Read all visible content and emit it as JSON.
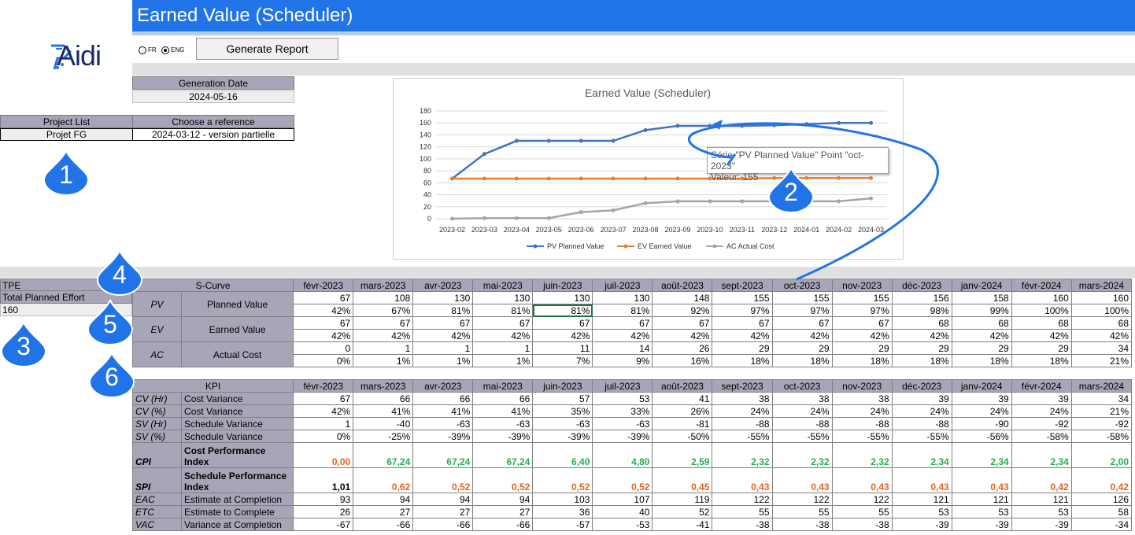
{
  "app": {
    "title": "Earned Value (Scheduler)",
    "logo_text": "Aidi"
  },
  "toolbar": {
    "lang_fr": "FR",
    "lang_eng": "ENG",
    "selected_lang": "ENG",
    "generate_label": "Generate Report"
  },
  "generation": {
    "label": "Generation Date",
    "value": "2024-05-16"
  },
  "project": {
    "list_label": "Project List",
    "list_value": "Projet FG",
    "ref_label": "Choose a reference",
    "ref_value": "2024-03-12 - version partielle"
  },
  "tpe": {
    "label": "TPE",
    "desc": "Total Planned Effort",
    "value": "160"
  },
  "badges": [
    "1",
    "2",
    "3",
    "4",
    "5",
    "6"
  ],
  "tooltip": {
    "line1": "Série \"PV Planned Value\" Point \"oct-2023\"",
    "line2": "Valeur: 155"
  },
  "scurve": {
    "title": "S-Curve",
    "months": [
      "févr-2023",
      "mars-2023",
      "avr-2023",
      "mai-2023",
      "juin-2023",
      "juil-2023",
      "août-2023",
      "sept-2023",
      "oct-2023",
      "nov-2023",
      "déc-2023",
      "janv-2024",
      "févr-2024",
      "mars-2024"
    ],
    "rows": [
      {
        "code": "PV",
        "name": "Planned Value",
        "values": [
          "67",
          "108",
          "130",
          "130",
          "130",
          "130",
          "148",
          "155",
          "155",
          "155",
          "156",
          "158",
          "160",
          "160"
        ],
        "pct": [
          "42%",
          "67%",
          "81%",
          "81%",
          "81%",
          "81%",
          "92%",
          "97%",
          "97%",
          "97%",
          "98%",
          "99%",
          "100%",
          "100%"
        ]
      },
      {
        "code": "EV",
        "name": "Earned Value",
        "values": [
          "67",
          "67",
          "67",
          "67",
          "67",
          "67",
          "67",
          "67",
          "67",
          "67",
          "68",
          "68",
          "68",
          "68"
        ],
        "pct": [
          "42%",
          "42%",
          "42%",
          "42%",
          "42%",
          "42%",
          "42%",
          "42%",
          "42%",
          "42%",
          "42%",
          "42%",
          "42%",
          "42%"
        ]
      },
      {
        "code": "AC",
        "name": "Actual Cost",
        "values": [
          "0",
          "1",
          "1",
          "1",
          "11",
          "14",
          "26",
          "29",
          "29",
          "29",
          "29",
          "29",
          "29",
          "34"
        ],
        "pct": [
          "0%",
          "1%",
          "1%",
          "1%",
          "7%",
          "9%",
          "16%",
          "18%",
          "18%",
          "18%",
          "18%",
          "18%",
          "18%",
          "21%"
        ]
      }
    ]
  },
  "kpi": {
    "title": "KPI",
    "rows": [
      {
        "code": "CV (Hr)",
        "name": "Cost Variance",
        "style": "normal",
        "values": [
          "67",
          "66",
          "66",
          "66",
          "57",
          "53",
          "41",
          "38",
          "38",
          "38",
          "39",
          "39",
          "39",
          "34"
        ]
      },
      {
        "code": "CV (%)",
        "name": "Cost Variance",
        "style": "normal",
        "values": [
          "42%",
          "41%",
          "41%",
          "41%",
          "35%",
          "33%",
          "26%",
          "24%",
          "24%",
          "24%",
          "24%",
          "24%",
          "24%",
          "21%"
        ]
      },
      {
        "code": "SV (Hr)",
        "name": "Schedule Variance",
        "style": "normal",
        "values": [
          "1",
          "-40",
          "-63",
          "-63",
          "-63",
          "-63",
          "-81",
          "-88",
          "-88",
          "-88",
          "-88",
          "-90",
          "-92",
          "-92"
        ]
      },
      {
        "code": "SV (%)",
        "name": "Schedule Variance",
        "style": "normal",
        "values": [
          "0%",
          "-25%",
          "-39%",
          "-39%",
          "-39%",
          "-39%",
          "-50%",
          "-55%",
          "-55%",
          "-55%",
          "-55%",
          "-56%",
          "-58%",
          "-58%"
        ]
      },
      {
        "code": "CPI",
        "name": "Cost Performance Index",
        "style": "cpi",
        "values": [
          "0,00",
          "67,24",
          "67,24",
          "67,24",
          "6,40",
          "4,80",
          "2,59",
          "2,32",
          "2,32",
          "2,32",
          "2,34",
          "2,34",
          "2,34",
          "2,00"
        ]
      },
      {
        "code": "SPI",
        "name": "Schedule Performance Index",
        "style": "spi",
        "values": [
          "1,01",
          "0,62",
          "0,52",
          "0,52",
          "0,52",
          "0,52",
          "0,45",
          "0,43",
          "0,43",
          "0,43",
          "0,43",
          "0,43",
          "0,42",
          "0,42"
        ]
      },
      {
        "code": "EAC",
        "name": "Estimate at Completion",
        "style": "normal",
        "values": [
          "93",
          "94",
          "94",
          "94",
          "103",
          "107",
          "119",
          "122",
          "122",
          "122",
          "121",
          "121",
          "121",
          "126"
        ]
      },
      {
        "code": "ETC",
        "name": "Estimate to Complete",
        "style": "normal",
        "values": [
          "26",
          "27",
          "27",
          "27",
          "36",
          "40",
          "52",
          "55",
          "55",
          "55",
          "53",
          "53",
          "53",
          "58"
        ]
      },
      {
        "code": "VAC",
        "name": "Variance at Completion",
        "style": "normal",
        "values": [
          "-67",
          "-66",
          "-66",
          "-66",
          "-57",
          "-53",
          "-41",
          "-38",
          "-38",
          "-38",
          "-39",
          "-39",
          "-39",
          "-34"
        ]
      }
    ]
  },
  "chart_data": {
    "type": "line",
    "title": "Earned Value (Scheduler)",
    "x": [
      "2023-02",
      "2023-03",
      "2023-04",
      "2023-05",
      "2023-06",
      "2023-07",
      "2023-08",
      "2023-09",
      "2023-10",
      "2023-11",
      "2023-12",
      "2024-01",
      "2024-02",
      "2024-03"
    ],
    "ylim": [
      0,
      180
    ],
    "yticks": [
      0,
      20,
      40,
      60,
      80,
      100,
      120,
      140,
      160,
      180
    ],
    "grid": true,
    "legend": "bottom",
    "series": [
      {
        "name": "PV Planned Value",
        "color": "#4472c4",
        "values": [
          67,
          108,
          130,
          130,
          130,
          130,
          148,
          155,
          155,
          155,
          156,
          158,
          160,
          160
        ]
      },
      {
        "name": "EV Earned Value",
        "color": "#ed7d31",
        "values": [
          67,
          67,
          67,
          67,
          67,
          67,
          67,
          67,
          67,
          67,
          68,
          68,
          68,
          68
        ]
      },
      {
        "name": "AC Actual Cost",
        "color": "#a5a5a5",
        "values": [
          0,
          1,
          1,
          1,
          11,
          14,
          26,
          29,
          29,
          29,
          29,
          29,
          29,
          34
        ]
      }
    ]
  }
}
